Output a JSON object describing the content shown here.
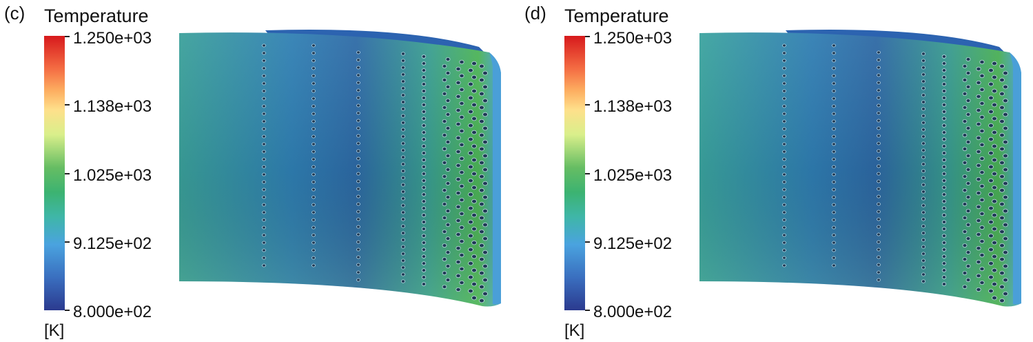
{
  "panels": [
    {
      "id": "c",
      "label": "(c)",
      "legend": {
        "title": "Temperature",
        "unit": "[K]",
        "ticks": [
          "1.250e+03",
          "1.138e+03",
          "1.025e+03",
          "9.125e+02",
          "8.000e+02"
        ],
        "min_value": 800,
        "max_value": 1250
      },
      "colormap": [
        "#d7191c",
        "#f46d43",
        "#fdae61",
        "#fee08b",
        "#d9ef8b",
        "#66bd63",
        "#3cb371",
        "#3fb6a8",
        "#4aa3df",
        "#3a6fbf",
        "#2b3a8f"
      ],
      "blade": {
        "surface_colors": [
          "#3d8fb8",
          "#2a6aa8",
          "#3aa37e"
        ]
      }
    },
    {
      "id": "d",
      "label": "(d)",
      "legend": {
        "title": "Temperature",
        "unit": "[K]",
        "ticks": [
          "1.250e+03",
          "1.138e+03",
          "1.025e+03",
          "9.125e+02",
          "8.000e+02"
        ],
        "min_value": 800,
        "max_value": 1250
      },
      "colormap": [
        "#d7191c",
        "#f46d43",
        "#fdae61",
        "#fee08b",
        "#d9ef8b",
        "#66bd63",
        "#3cb371",
        "#3fb6a8",
        "#4aa3df",
        "#3a6fbf",
        "#2b3a8f"
      ],
      "blade": {
        "surface_colors": [
          "#3c8cb6",
          "#2a68a6",
          "#3aa07c"
        ]
      }
    }
  ]
}
